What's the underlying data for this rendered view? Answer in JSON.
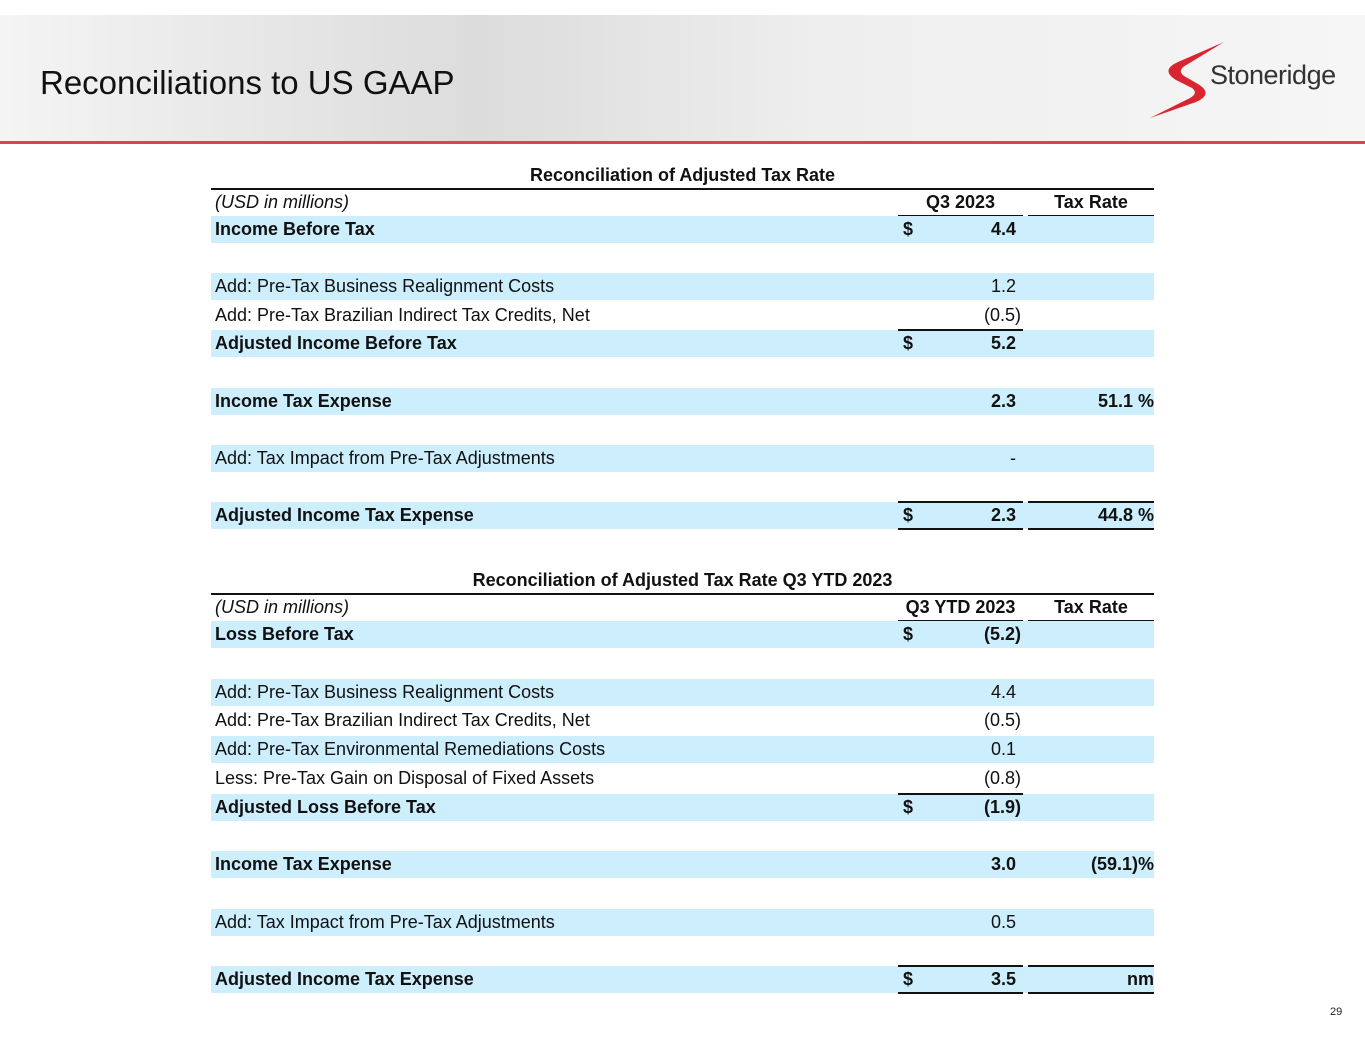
{
  "header": {
    "title": "Reconciliations to US GAAP",
    "logo": "Stoneridge"
  },
  "page_number": "29",
  "tables": [
    {
      "title": "Reconciliation of Adjusted Tax Rate",
      "columns": [
        "(USD in millions)",
        "Q3 2023",
        "Tax Rate"
      ],
      "rows": [
        {
          "label": "Income Before Tax",
          "dollar": "$",
          "value": "4.4",
          "bold": true,
          "shaded": true
        },
        null,
        {
          "label": "Add: Pre-Tax Business Realignment Costs",
          "value": "1.2",
          "shaded": true
        },
        {
          "label": "Add: Pre-Tax Brazilian Indirect Tax Credits, Net",
          "value": "(0.5)"
        },
        {
          "label": "Adjusted Income Before Tax",
          "dollar": "$",
          "value": "5.2",
          "bold": true,
          "shaded": true,
          "rule": "top"
        },
        null,
        {
          "label": "Income Tax Expense",
          "value": "2.3",
          "rate": "51.1 %",
          "bold": true,
          "shaded": true
        },
        null,
        {
          "label": "Add: Tax Impact from Pre-Tax Adjustments",
          "value": "-",
          "shaded": true
        },
        null,
        {
          "label": "Adjusted Income Tax Expense",
          "dollar": "$",
          "value": "2.3",
          "rate": "44.8 %",
          "bold": true,
          "shaded": true,
          "rule": "both"
        }
      ]
    },
    {
      "title": "Reconciliation of Adjusted Tax Rate Q3 YTD 2023",
      "columns": [
        "(USD in millions)",
        "Q3 YTD 2023",
        "Tax Rate"
      ],
      "rows": [
        {
          "label": "Loss Before Tax",
          "dollar": "$",
          "value": "(5.2)",
          "bold": true,
          "shaded": true
        },
        null,
        {
          "label": "Add: Pre-Tax Business Realignment Costs",
          "value": "4.4",
          "shaded": true
        },
        {
          "label": "Add: Pre-Tax Brazilian Indirect Tax Credits, Net",
          "value": "(0.5)"
        },
        {
          "label": "Add: Pre-Tax Environmental Remediations Costs",
          "value": "0.1",
          "shaded": true
        },
        {
          "label": "Less: Pre-Tax Gain on Disposal of Fixed Assets",
          "value": "(0.8)"
        },
        {
          "label": "Adjusted Loss Before Tax",
          "dollar": "$",
          "value": "(1.9)",
          "bold": true,
          "shaded": true,
          "rule": "top"
        },
        null,
        {
          "label": "Income Tax Expense",
          "value": "3.0",
          "rate": "(59.1)%",
          "bold": true,
          "shaded": true
        },
        null,
        {
          "label": "Add: Tax Impact from Pre-Tax Adjustments",
          "value": "0.5",
          "shaded": true
        },
        null,
        {
          "label": "Adjusted Income Tax Expense",
          "dollar": "$",
          "value": "3.5",
          "rate": "nm",
          "bold": true,
          "shaded": true,
          "rule": "both"
        }
      ]
    }
  ]
}
